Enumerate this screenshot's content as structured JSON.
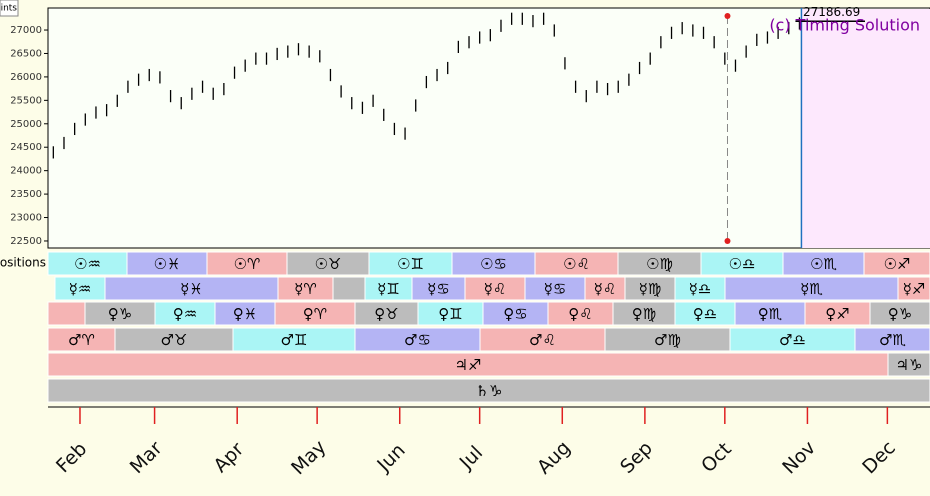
{
  "chart_data": {
    "type": "ohlc",
    "corner_label": "Points",
    "annotations": [
      {
        "text": "(c) Timing Solution",
        "color": "#8000a0"
      }
    ],
    "last_price": {
      "value": 27186.69,
      "label": "27186.69"
    },
    "cursor": 275,
    "color": "#000000",
    "x": [
      22,
      26,
      30,
      34,
      38,
      42,
      46,
      50,
      54,
      58,
      62,
      66,
      70,
      74,
      78,
      82,
      86,
      90,
      94,
      98,
      102,
      106,
      110,
      114,
      118,
      122,
      126,
      130,
      134,
      138,
      142,
      146,
      150,
      154,
      158,
      162,
      166,
      170,
      174,
      178,
      182,
      186,
      190,
      194,
      198,
      202,
      206,
      210,
      214,
      218,
      222,
      226,
      230,
      234,
      238,
      242,
      246,
      250,
      254,
      258,
      262,
      266,
      270,
      274,
      278,
      282,
      286,
      290,
      294,
      298,
      302
    ],
    "high": [
      24520,
      24720,
      25020,
      25220,
      25370,
      25420,
      25620,
      25920,
      26070,
      26170,
      26120,
      25720,
      25570,
      25770,
      25920,
      25770,
      25870,
      26220,
      26370,
      26520,
      26520,
      26620,
      26670,
      26720,
      26670,
      26570,
      26170,
      25820,
      25570,
      25470,
      25620,
      25320,
      25020,
      24920,
      25520,
      26020,
      26170,
      26320,
      26770,
      26870,
      26970,
      27020,
      27220,
      27370,
      27370,
      27320,
      27370,
      27120,
      26420,
      25920,
      25720,
      25920,
      25870,
      25920,
      26070,
      26320,
      26520,
      26870,
      27070,
      27170,
      27120,
      27070,
      26870,
      26520,
      26370,
      26670,
      26920,
      26970,
      27070,
      27170,
      27270
    ],
    "low": [
      24260,
      24460,
      24760,
      24960,
      25110,
      25160,
      25360,
      25660,
      25810,
      25910,
      25860,
      25460,
      25310,
      25510,
      25660,
      25510,
      25610,
      25960,
      26110,
      26260,
      26260,
      26360,
      26410,
      26460,
      26410,
      26310,
      25910,
      25560,
      25310,
      25210,
      25360,
      25060,
      24760,
      24660,
      25260,
      25760,
      25910,
      26060,
      26510,
      26610,
      26710,
      26760,
      26960,
      27110,
      27110,
      27060,
      27110,
      26860,
      26160,
      25660,
      25460,
      25660,
      25610,
      25660,
      25810,
      26060,
      26260,
      26610,
      26810,
      26910,
      26860,
      26810,
      26610,
      26260,
      26110,
      26410,
      26660,
      26710,
      26810,
      26910,
      27010
    ],
    "xlim": [
      20,
      351
    ],
    "ylim": [
      22350,
      27470
    ],
    "yticks": [
      22500,
      23000,
      23500,
      24000,
      24500,
      25000,
      25500,
      26000,
      26500,
      27000
    ],
    "xticks": [
      {
        "value": 32,
        "label": "Feb"
      },
      {
        "value": 60,
        "label": "Mar"
      },
      {
        "value": 91,
        "label": "Apr"
      },
      {
        "value": 121,
        "label": "May"
      },
      {
        "value": 152,
        "label": "Jun"
      },
      {
        "value": 182,
        "label": "Jul"
      },
      {
        "value": 213,
        "label": "Aug"
      },
      {
        "value": 244,
        "label": "Sep"
      },
      {
        "value": 274,
        "label": "Oct"
      },
      {
        "value": 305,
        "label": "Nov"
      },
      {
        "value": 335,
        "label": "Dec"
      }
    ],
    "bands_label": "Positions",
    "bands": [
      {
        "segments": [
          {
            "label": "☉♒",
            "color": "#aaf5f5"
          },
          {
            "label": "☉♓",
            "color": "#b4b4f4"
          },
          {
            "label": "☉♈",
            "color": "#f5b4b4"
          },
          {
            "label": "☉♉",
            "color": "#bcbcbc"
          },
          {
            "label": "☉♊",
            "color": "#aaf5f5"
          },
          {
            "label": "☉♋",
            "color": "#b4b4f4"
          },
          {
            "label": "☉♌",
            "color": "#f5b4b4"
          },
          {
            "label": "☉♍",
            "color": "#bcbcbc"
          },
          {
            "label": "☉♎",
            "color": "#aaf5f5"
          },
          {
            "label": "☉♏",
            "color": "#b4b4f4"
          },
          {
            "label": "☉♐",
            "color": "#f5b4b4"
          }
        ]
      },
      {
        "segments": [
          {
            "label": "☿♒",
            "color": "#aaf5f5"
          },
          {
            "label": "☿♓",
            "color": "#b4b4f4"
          },
          {
            "label": "☿♈",
            "color": "#f5b4b4"
          },
          {
            "label": null,
            "color": "#bcbcbc"
          },
          {
            "label": "☿♊",
            "color": "#aaf5f5"
          },
          {
            "label": "☿♋",
            "color": "#b4b4f4"
          },
          {
            "label": "☿♌",
            "color": "#f5b4b4"
          },
          {
            "label": "☿♋",
            "color": "#b4b4f4"
          },
          {
            "label": "☿♌",
            "color": "#f5b4b4"
          },
          {
            "label": "☿♍",
            "color": "#bcbcbc"
          },
          {
            "label": "☿♎",
            "color": "#aaf5f5"
          },
          {
            "label": "☿♏",
            "color": "#b4b4f4"
          },
          {
            "label": "☿♐",
            "color": "#f5b4b4"
          }
        ]
      },
      {
        "segments": [
          {
            "label": null,
            "color": "#f5b4b4"
          },
          {
            "label": "♀♑",
            "color": "#bcbcbc"
          },
          {
            "label": "♀♒",
            "color": "#aaf5f5"
          },
          {
            "label": "♀♓",
            "color": "#b4b4f4"
          },
          {
            "label": "♀♈",
            "color": "#f5b4b4"
          },
          {
            "label": "♀♉",
            "color": "#bcbcbc"
          },
          {
            "label": "♀♊",
            "color": "#aaf5f5"
          },
          {
            "label": "♀♋",
            "color": "#b4b4f4"
          },
          {
            "label": "♀♌",
            "color": "#f5b4b4"
          },
          {
            "label": "♀♍",
            "color": "#bcbcbc"
          },
          {
            "label": "♀♎",
            "color": "#aaf5f5"
          },
          {
            "label": "♀♏",
            "color": "#b4b4f4"
          },
          {
            "label": "♀♐",
            "color": "#f5b4b4"
          },
          {
            "label": "♀♑",
            "color": "#bcbcbc"
          }
        ]
      },
      {
        "segments": [
          {
            "label": "♂♈",
            "color": "#f5b4b4"
          },
          {
            "label": "♂♉",
            "color": "#bcbcbc"
          },
          {
            "label": "♂♊",
            "color": "#aaf5f5"
          },
          {
            "label": "♂♋",
            "color": "#b4b4f4"
          },
          {
            "label": "♂♌",
            "color": "#f5b4b4"
          },
          {
            "label": "♂♍",
            "color": "#bcbcbc"
          },
          {
            "label": "♂♎",
            "color": "#aaf5f5"
          },
          {
            "label": "♂♏",
            "color": "#b4b4f4"
          }
        ]
      },
      {
        "segments": [
          {
            "label": "♃♐",
            "color": "#f5b4b4"
          },
          {
            "label": "♃♑",
            "color": "#bcbcbc"
          }
        ]
      },
      {
        "segments": [
          {
            "label": "♄♑",
            "color": "#bcbcbc"
          }
        ]
      }
    ]
  }
}
